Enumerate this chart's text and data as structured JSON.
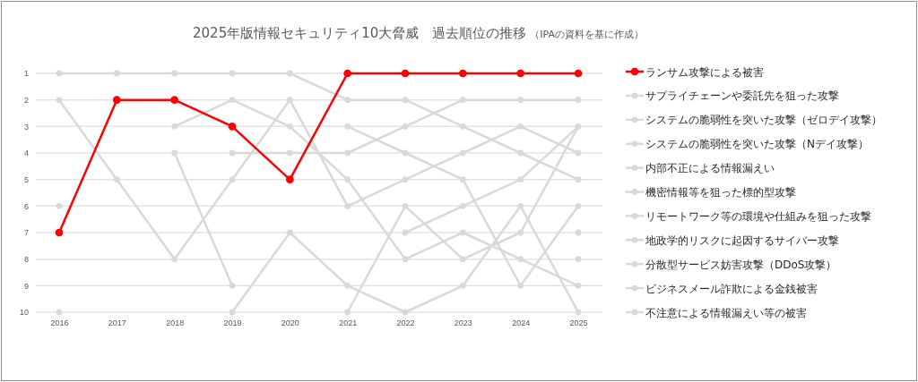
{
  "chart_data": {
    "type": "line",
    "title": "2025年版情報セキュリティ10大脅威　過去順位の推移",
    "subtitle": "（IPAの資料を基に作成）",
    "categories": [
      "2016",
      "2017",
      "2018",
      "2019",
      "2020",
      "2021",
      "2022",
      "2023",
      "2024",
      "2025"
    ],
    "ylim": [
      10,
      1
    ],
    "yticks": [
      1,
      2,
      3,
      4,
      5,
      6,
      7,
      8,
      9,
      10
    ],
    "grid": "y",
    "legend": "right",
    "marker": "circle",
    "line_style": "solid",
    "series": [
      {
        "name": "ランサム攻撃による被害",
        "color": "#ff0000",
        "values": [
          7,
          2,
          2,
          3,
          5,
          1,
          1,
          1,
          1,
          1
        ]
      },
      {
        "name": "サプライチェーンや委託先を狙った攻撃",
        "color": "#d9d9d9",
        "values": [
          null,
          null,
          null,
          4,
          4,
          4,
          3,
          2,
          2,
          2
        ]
      },
      {
        "name": "システムの脆弱性を突いた攻撃（ゼロデイ攻撃）",
        "color": "#d9d9d9",
        "values": [
          null,
          null,
          null,
          null,
          null,
          null,
          7,
          6,
          5,
          3
        ]
      },
      {
        "name": "システムの脆弱性を突いた攻撃（Nデイ攻撃）",
        "color": "#d9d9d9",
        "values": [
          6,
          null,
          4,
          9,
          null,
          10,
          6,
          8,
          7,
          3
        ]
      },
      {
        "name": "内部不正による情報漏えい",
        "color": "#d9d9d9",
        "values": [
          2,
          5,
          8,
          5,
          2,
          6,
          5,
          4,
          3,
          4
        ]
      },
      {
        "name": "機密情報等を狙った標的型攻撃",
        "color": "#d9d9d9",
        "values": [
          1,
          1,
          1,
          1,
          1,
          2,
          2,
          3,
          4,
          5
        ]
      },
      {
        "name": "リモートワーク等の環境や仕組みを狙った攻撃",
        "color": "#d9d9d9",
        "values": [
          null,
          null,
          null,
          null,
          null,
          3,
          4,
          5,
          9,
          6
        ]
      },
      {
        "name": "地政学的リスクに起因するサイバー攻撃",
        "color": "#d9d9d9",
        "values": [
          null,
          null,
          null,
          null,
          null,
          null,
          null,
          null,
          null,
          7
        ]
      },
      {
        "name": "分散型サービス妨害攻撃（DDoS攻撃）",
        "color": "#d9d9d9",
        "values": [
          null,
          null,
          null,
          null,
          null,
          null,
          null,
          null,
          null,
          8
        ]
      },
      {
        "name": "ビジネスメール詐欺による金銭被害",
        "color": "#d9d9d9",
        "values": [
          null,
          null,
          3,
          2,
          3,
          5,
          8,
          7,
          8,
          9
        ]
      },
      {
        "name": "不注意による情報漏えい等の被害",
        "color": "#d9d9d9",
        "values": [
          10,
          null,
          null,
          10,
          7,
          9,
          10,
          9,
          6,
          10
        ]
      }
    ]
  }
}
